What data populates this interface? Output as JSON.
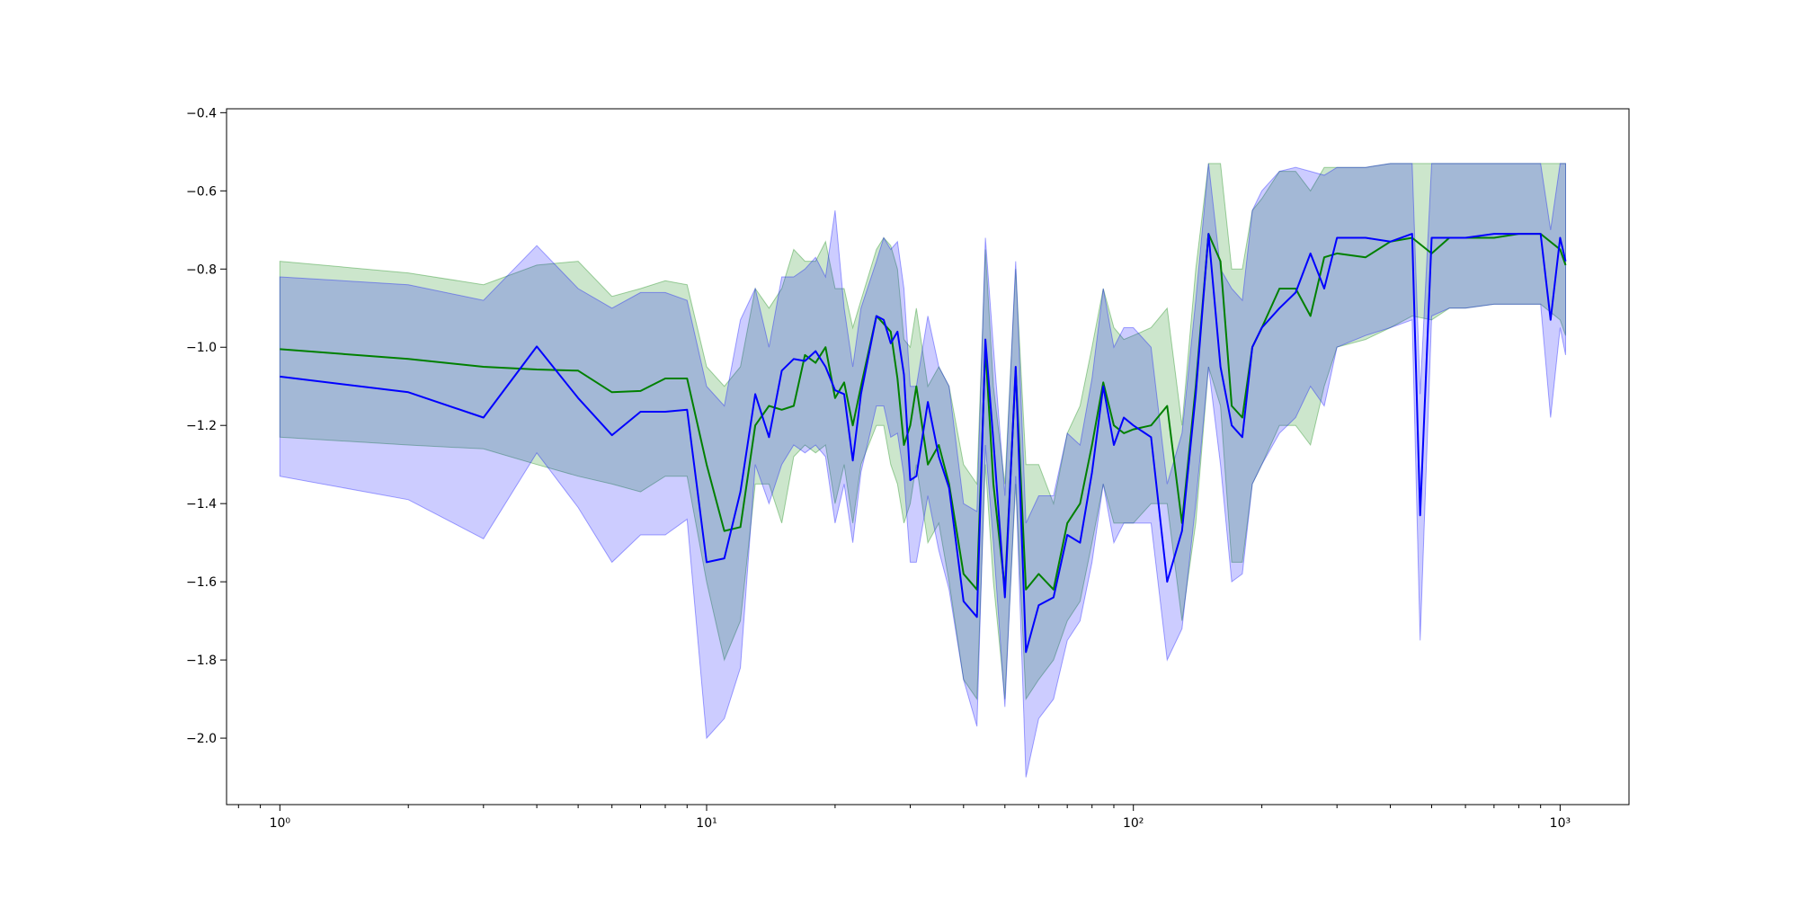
{
  "chart_data": {
    "type": "line",
    "title": "",
    "xlabel": "",
    "ylabel": "",
    "x_scale": "log",
    "xlim": [
      0.75,
      1450
    ],
    "ylim": [
      -2.17,
      -0.39
    ],
    "grid": false,
    "legend": "none",
    "x_ticks": [
      {
        "value": 1,
        "label": "10⁰"
      },
      {
        "value": 10,
        "label": "10¹"
      },
      {
        "value": 100,
        "label": "10²"
      },
      {
        "value": 1000,
        "label": "10³"
      }
    ],
    "y_ticks": [
      {
        "value": -0.4,
        "label": "−0.4"
      },
      {
        "value": -0.6,
        "label": "−0.6"
      },
      {
        "value": -0.8,
        "label": "−0.8"
      },
      {
        "value": -1.0,
        "label": "−1.0"
      },
      {
        "value": -1.2,
        "label": "−1.2"
      },
      {
        "value": -1.4,
        "label": "−1.4"
      },
      {
        "value": -1.6,
        "label": "−1.6"
      },
      {
        "value": -1.8,
        "label": "−1.8"
      },
      {
        "value": -2.0,
        "label": "−2.0"
      }
    ],
    "series": [
      {
        "color": "#008000",
        "band_color": "#008000",
        "band_opacity": 0.2,
        "x": [
          1,
          2,
          3,
          4,
          5,
          6,
          7,
          8,
          9,
          10,
          11,
          12,
          13,
          14,
          15,
          16,
          17,
          18,
          19,
          20,
          21,
          22,
          23,
          25,
          26,
          27,
          28,
          29,
          30,
          31,
          33,
          35,
          37,
          40,
          43,
          45,
          47,
          50,
          53,
          56,
          60,
          65,
          70,
          75,
          80,
          85,
          90,
          95,
          100,
          110,
          120,
          130,
          140,
          150,
          160,
          170,
          180,
          190,
          200,
          220,
          240,
          260,
          280,
          300,
          350,
          400,
          450,
          500,
          550,
          600,
          700,
          800,
          900,
          1000,
          1030
        ],
        "y": [
          -1.005,
          -1.03,
          -1.05,
          -1.057,
          -1.06,
          -1.115,
          -1.112,
          -1.08,
          -1.08,
          -1.3,
          -1.47,
          -1.46,
          -1.2,
          -1.15,
          -1.16,
          -1.15,
          -1.02,
          -1.04,
          -1.0,
          -1.13,
          -1.09,
          -1.2,
          -1.1,
          -0.92,
          -0.94,
          -0.96,
          -1.08,
          -1.25,
          -1.2,
          -1.1,
          -1.3,
          -1.25,
          -1.35,
          -1.58,
          -1.62,
          -1.0,
          -1.35,
          -1.62,
          -1.06,
          -1.62,
          -1.58,
          -1.62,
          -1.45,
          -1.4,
          -1.25,
          -1.09,
          -1.2,
          -1.22,
          -1.21,
          -1.2,
          -1.15,
          -1.45,
          -1.1,
          -0.71,
          -0.78,
          -1.15,
          -1.18,
          -1.0,
          -0.95,
          -0.85,
          -0.85,
          -0.92,
          -0.77,
          -0.76,
          -0.77,
          -0.73,
          -0.72,
          -0.76,
          -0.72,
          -0.72,
          -0.72,
          -0.71,
          -0.71,
          -0.75,
          -0.79
        ],
        "lower": [
          -1.23,
          -1.25,
          -1.26,
          -1.3,
          -1.33,
          -1.35,
          -1.37,
          -1.33,
          -1.33,
          -1.6,
          -1.8,
          -1.7,
          -1.35,
          -1.35,
          -1.45,
          -1.28,
          -1.25,
          -1.27,
          -1.25,
          -1.4,
          -1.3,
          -1.45,
          -1.3,
          -1.2,
          -1.2,
          -1.3,
          -1.35,
          -1.45,
          -1.4,
          -1.3,
          -1.5,
          -1.45,
          -1.6,
          -1.85,
          -1.9,
          -1.3,
          -1.6,
          -1.9,
          -1.35,
          -1.9,
          -1.85,
          -1.8,
          -1.7,
          -1.65,
          -1.5,
          -1.35,
          -1.45,
          -1.45,
          -1.45,
          -1.4,
          -1.4,
          -1.7,
          -1.45,
          -1.05,
          -1.15,
          -1.55,
          -1.55,
          -1.35,
          -1.3,
          -1.2,
          -1.2,
          -1.25,
          -1.1,
          -1.0,
          -0.98,
          -0.95,
          -0.92,
          -0.93,
          -0.9,
          -0.9,
          -0.89,
          -0.89,
          -0.89,
          -0.93,
          -0.97
        ],
        "upper": [
          -0.78,
          -0.81,
          -0.84,
          -0.79,
          -0.78,
          -0.87,
          -0.85,
          -0.83,
          -0.84,
          -1.05,
          -1.1,
          -1.05,
          -0.85,
          -0.9,
          -0.85,
          -0.75,
          -0.78,
          -0.78,
          -0.73,
          -0.85,
          -0.85,
          -0.95,
          -0.88,
          -0.75,
          -0.72,
          -0.74,
          -0.8,
          -0.98,
          -1.0,
          -0.9,
          -1.1,
          -1.05,
          -1.1,
          -1.3,
          -1.35,
          -0.75,
          -1.1,
          -1.35,
          -0.8,
          -1.3,
          -1.3,
          -1.4,
          -1.22,
          -1.15,
          -1.0,
          -0.85,
          -0.95,
          -0.98,
          -0.97,
          -0.95,
          -0.9,
          -1.2,
          -0.8,
          -0.53,
          -0.53,
          -0.8,
          -0.8,
          -0.65,
          -0.62,
          -0.55,
          -0.55,
          -0.6,
          -0.54,
          -0.54,
          -0.54,
          -0.53,
          -0.53,
          -0.53,
          -0.53,
          -0.53,
          -0.53,
          -0.53,
          -0.53,
          -0.53,
          -0.53
        ]
      },
      {
        "color": "#0000ff",
        "band_color": "#0000ff",
        "band_opacity": 0.2,
        "x": [
          1,
          2,
          3,
          4,
          5,
          6,
          7,
          8,
          9,
          10,
          11,
          12,
          13,
          14,
          15,
          16,
          17,
          18,
          19,
          20,
          21,
          22,
          23,
          25,
          26,
          27,
          28,
          29,
          30,
          31,
          33,
          35,
          37,
          40,
          43,
          45,
          47,
          50,
          53,
          56,
          60,
          65,
          70,
          75,
          80,
          85,
          90,
          95,
          100,
          110,
          120,
          130,
          140,
          150,
          160,
          170,
          180,
          190,
          200,
          220,
          240,
          260,
          280,
          300,
          350,
          400,
          450,
          470,
          500,
          550,
          600,
          700,
          800,
          900,
          950,
          1000,
          1030
        ],
        "y": [
          -1.075,
          -1.115,
          -1.18,
          -0.998,
          -1.13,
          -1.225,
          -1.165,
          -1.165,
          -1.16,
          -1.55,
          -1.54,
          -1.37,
          -1.12,
          -1.23,
          -1.06,
          -1.03,
          -1.035,
          -1.01,
          -1.05,
          -1.11,
          -1.12,
          -1.29,
          -1.12,
          -0.92,
          -0.93,
          -0.99,
          -0.96,
          -1.07,
          -1.34,
          -1.33,
          -1.14,
          -1.28,
          -1.36,
          -1.65,
          -1.69,
          -0.98,
          -1.24,
          -1.64,
          -1.05,
          -1.78,
          -1.66,
          -1.64,
          -1.48,
          -1.5,
          -1.32,
          -1.1,
          -1.25,
          -1.18,
          -1.2,
          -1.23,
          -1.6,
          -1.47,
          -1.12,
          -0.71,
          -1.05,
          -1.2,
          -1.23,
          -1.0,
          -0.95,
          -0.9,
          -0.86,
          -0.76,
          -0.85,
          -0.72,
          -0.72,
          -0.73,
          -0.71,
          -1.43,
          -0.72,
          -0.72,
          -0.72,
          -0.71,
          -0.71,
          -0.71,
          -0.93,
          -0.72,
          -0.78
        ],
        "lower": [
          -1.33,
          -1.39,
          -1.49,
          -1.27,
          -1.41,
          -1.55,
          -1.48,
          -1.48,
          -1.44,
          -2.0,
          -1.95,
          -1.82,
          -1.3,
          -1.4,
          -1.3,
          -1.25,
          -1.27,
          -1.25,
          -1.28,
          -1.45,
          -1.35,
          -1.5,
          -1.32,
          -1.15,
          -1.15,
          -1.23,
          -1.22,
          -1.33,
          -1.55,
          -1.55,
          -1.38,
          -1.52,
          -1.62,
          -1.85,
          -1.97,
          -1.25,
          -1.5,
          -1.92,
          -1.33,
          -2.1,
          -1.95,
          -1.9,
          -1.75,
          -1.7,
          -1.55,
          -1.35,
          -1.5,
          -1.45,
          -1.45,
          -1.45,
          -1.8,
          -1.72,
          -1.4,
          -1.05,
          -1.3,
          -1.6,
          -1.58,
          -1.35,
          -1.3,
          -1.22,
          -1.18,
          -1.1,
          -1.15,
          -1.0,
          -0.97,
          -0.95,
          -0.93,
          -1.75,
          -0.92,
          -0.9,
          -0.9,
          -0.89,
          -0.89,
          -0.89,
          -1.18,
          -0.95,
          -1.02
        ],
        "upper": [
          -0.82,
          -0.84,
          -0.88,
          -0.74,
          -0.85,
          -0.9,
          -0.86,
          -0.86,
          -0.88,
          -1.1,
          -1.15,
          -0.93,
          -0.85,
          -1.0,
          -0.82,
          -0.82,
          -0.8,
          -0.77,
          -0.82,
          -0.65,
          -0.9,
          -1.05,
          -0.9,
          -0.78,
          -0.72,
          -0.75,
          -0.73,
          -0.85,
          -1.1,
          -1.1,
          -0.92,
          -1.05,
          -1.1,
          -1.4,
          -1.42,
          -0.72,
          -1.0,
          -1.38,
          -0.78,
          -1.45,
          -1.38,
          -1.38,
          -1.22,
          -1.25,
          -1.08,
          -0.85,
          -1.0,
          -0.95,
          -0.95,
          -1.0,
          -1.35,
          -1.22,
          -0.88,
          -0.53,
          -0.8,
          -0.85,
          -0.88,
          -0.65,
          -0.6,
          -0.55,
          -0.54,
          -0.55,
          -0.56,
          -0.54,
          -0.54,
          -0.53,
          -0.53,
          -1.12,
          -0.53,
          -0.53,
          -0.53,
          -0.53,
          -0.53,
          -0.53,
          -0.7,
          -0.53,
          -0.53
        ]
      }
    ]
  }
}
